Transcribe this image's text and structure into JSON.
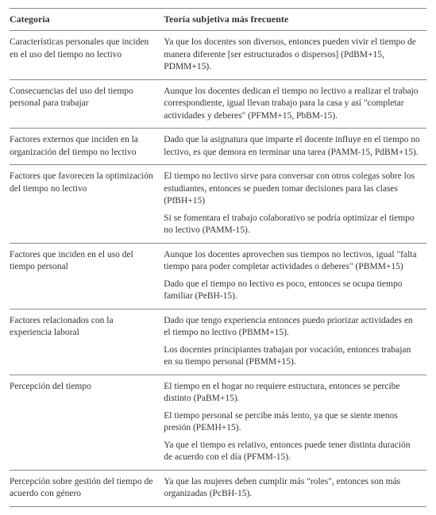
{
  "headers": {
    "category": "Categoría",
    "theory": "Teoría subjetiva más frecuente"
  },
  "rows": [
    {
      "category": "Características personales que inciden en el uso del tiempo no lectivo",
      "theories": [
        "Ya que los docentes son diversos, entonces pueden vivir el tiempo de manera diferente [ser estructurados o dispersos] (PdBM+15, PDMM+15)."
      ]
    },
    {
      "category": "Consecuencias del uso del tiempo personal para trabajar",
      "theories": [
        "Aunque los docentes dedican el tiempo no lectivo a realizar el trabajo correspondiente, igual llevan trabajo para la casa y así \"completar actividades y deberes\" (PFMM+15, PbBM-15)."
      ]
    },
    {
      "category": "Factores externos que inciden en la organización del tiempo no lectivo",
      "theories": [
        "Dado que la asignatura que imparte el docente influye en el tiempo no lectivo, es que demora en terminar una tarea (PAMM-15, PdBM+15)."
      ]
    },
    {
      "category": "Factores que favorecen la optimización del tiempo no lectivo",
      "theories": [
        "El tiempo no lectivo sirve para conversar con otros colegas sobre los estudiantes, entonces se pueden tomar decisiones para las clases (PfBH+15)",
        "Si se fomentara el trabajo colaborativo se podría optimizar el tiempo no lectivo (PAMM-15)."
      ]
    },
    {
      "category": "Factores que inciden en el uso del tiempo personal",
      "theories": [
        "Aunque los docentes aprovechen sus tiempos no lectivos, igual \"falta tiempo para poder completar actividades o deberes\" (PBMM+15)",
        "Dado que el tiempo no lectivo es poco, entonces se ocupa tiempo familiar (PeBH-15)."
      ]
    },
    {
      "category": "Factores relacionados con la experiencia laboral",
      "theories": [
        "Dado que tengo experiencia entonces puedo priorizar actividades en el tiempo no lectivo (PBMM+15).",
        "Los docentes principiantes trabajan por vocación, entonces trabajan en su tiempo personal (PBMM+15)."
      ]
    },
    {
      "category": "Percepción del tiempo",
      "theories": [
        "El tiempo en el hogar no requiere estructura, entonces se percibe distinto (PaBM+15).",
        "El tiempo personal se percibe más lento, ya que se siente menos presión (PEMH+15).",
        "Ya que el tiempo es relativo, entonces puede tener distinta duración de acuerdo con el día (PFMM-15)."
      ]
    },
    {
      "category": "Percepción sobre gestión del tiempo de acuerdo con género",
      "theories": [
        "Ya que las mujeres deben cumplir más \"roles\", entonces son más organizadas (PcBH-15)."
      ]
    }
  ]
}
